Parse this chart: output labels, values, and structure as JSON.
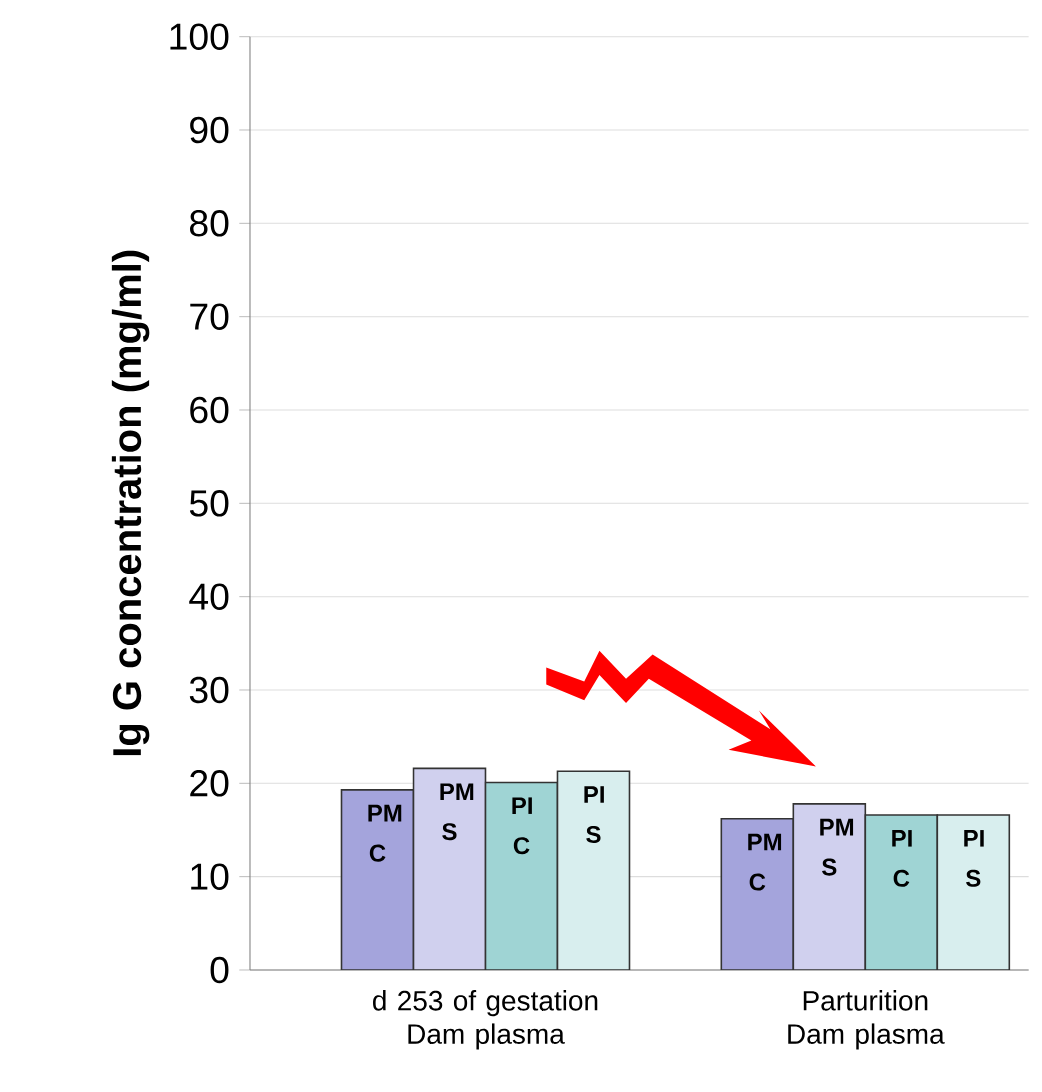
{
  "chart_data": {
    "type": "bar",
    "ylabel": "Ig G concentration (mg/ml)",
    "categories": [
      "d 253 of gestation Dam plasma",
      "Parturition Dam plasma"
    ],
    "series": [
      {
        "name": "PM C",
        "color": "#a4a4dc",
        "values": [
          19.3,
          16.2
        ]
      },
      {
        "name": "PM S",
        "color": "#d0d0ee",
        "values": [
          21.6,
          17.8
        ]
      },
      {
        "name": "PI C",
        "color": "#9fd4d4",
        "values": [
          20.1,
          16.6
        ]
      },
      {
        "name": "PI S",
        "color": "#d8eeee",
        "values": [
          21.3,
          16.6
        ]
      }
    ],
    "ylim": [
      0,
      100
    ],
    "yticks": [
      0,
      10,
      20,
      30,
      40,
      50,
      60,
      70,
      80,
      90,
      100
    ],
    "grid": "y"
  }
}
